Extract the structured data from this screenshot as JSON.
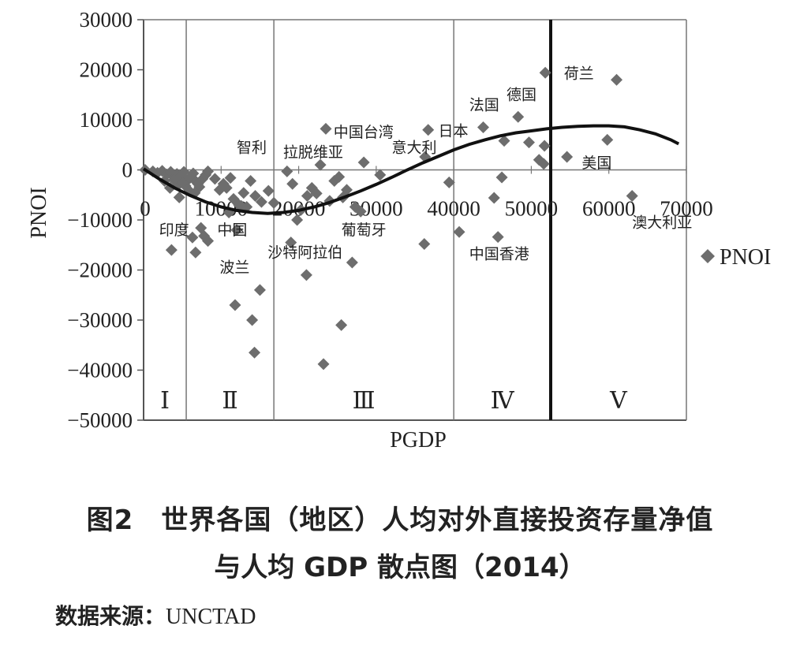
{
  "chart_data": {
    "type": "scatter",
    "title": "",
    "xlabel": "PGDP",
    "ylabel": "PNOI",
    "xlim": [
      0,
      70000
    ],
    "ylim": [
      -50000,
      30000
    ],
    "x_ticks": [
      "0",
      "10000",
      "20000",
      "30000",
      "40000",
      "50000",
      "60000",
      "70000"
    ],
    "y_ticks": [
      "30000",
      "20000",
      "10000",
      "0",
      "−10000",
      "−20000",
      "−30000",
      "−40000",
      "−50000"
    ],
    "legend": "right",
    "grid": false,
    "series": [
      {
        "name": "PNOI",
        "marker": "diamond",
        "color": "#6d6d6d",
        "points": [
          [
            200,
            0
          ],
          [
            1200,
            -300
          ],
          [
            1800,
            -600
          ],
          [
            2400,
            -200
          ],
          [
            3000,
            -900
          ],
          [
            3500,
            -400
          ],
          [
            4000,
            -1600
          ],
          [
            4300,
            -800
          ],
          [
            4800,
            -1200
          ],
          [
            5200,
            -400
          ],
          [
            5600,
            -2200
          ],
          [
            6000,
            -1500
          ],
          [
            6400,
            -700
          ],
          [
            6800,
            -2400
          ],
          [
            7200,
            -3400
          ],
          [
            7600,
            -1800
          ],
          [
            8000,
            -1000
          ],
          [
            8300,
            -300
          ],
          [
            4500,
            -3000
          ],
          [
            5400,
            -3200
          ],
          [
            5900,
            -4200
          ],
          [
            6600,
            -4600
          ],
          [
            7000,
            -2800
          ],
          [
            5000,
            -2600
          ],
          [
            4600,
            -5500
          ],
          [
            3900,
            -2000
          ],
          [
            3400,
            -3600
          ],
          [
            2700,
            -2200
          ],
          [
            3600,
            -16000
          ],
          [
            6300,
            -13500
          ],
          [
            6700,
            -16500
          ],
          [
            7800,
            -13200
          ],
          [
            8300,
            -14200
          ],
          [
            7400,
            -11600
          ],
          [
            9200,
            -1800
          ],
          [
            9800,
            -4000
          ],
          [
            10300,
            -2800
          ],
          [
            10700,
            -3600
          ],
          [
            11200,
            -1600
          ],
          [
            11600,
            -5800
          ],
          [
            12300,
            -7000
          ],
          [
            12900,
            -4600
          ],
          [
            13300,
            -7400
          ],
          [
            13800,
            -2200
          ],
          [
            14400,
            -5200
          ],
          [
            15200,
            -6400
          ],
          [
            16100,
            -4200
          ],
          [
            16800,
            -6600
          ],
          [
            11000,
            -8500
          ],
          [
            12000,
            -12000
          ],
          [
            12600,
            -7200
          ],
          [
            11800,
            -27000
          ],
          [
            14000,
            -30000
          ],
          [
            14300,
            -36500
          ],
          [
            15000,
            -24000
          ],
          [
            18500,
            -300
          ],
          [
            19200,
            -2800
          ],
          [
            19800,
            -10000
          ],
          [
            20300,
            -8000
          ],
          [
            21100,
            -5200
          ],
          [
            21700,
            -3600
          ],
          [
            22300,
            -4700
          ],
          [
            22800,
            1000
          ],
          [
            23500,
            8200
          ],
          [
            24000,
            -6200
          ],
          [
            24600,
            -2200
          ],
          [
            25200,
            -1400
          ],
          [
            25700,
            -5500
          ],
          [
            26200,
            -4000
          ],
          [
            26900,
            -18500
          ],
          [
            27300,
            -7400
          ],
          [
            28000,
            -8300
          ],
          [
            28400,
            1500
          ],
          [
            30500,
            -1000
          ],
          [
            19000,
            -14500
          ],
          [
            21000,
            -21000
          ],
          [
            25500,
            -31000
          ],
          [
            23200,
            -38800
          ],
          [
            36700,
            8000
          ],
          [
            36300,
            2600
          ],
          [
            36200,
            -14800
          ],
          [
            39400,
            -2500
          ],
          [
            40700,
            -12400
          ],
          [
            43800,
            8500
          ],
          [
            45200,
            -5600
          ],
          [
            45700,
            -13400
          ],
          [
            46200,
            -1500
          ],
          [
            46500,
            5800
          ],
          [
            48300,
            10600
          ],
          [
            49700,
            5500
          ],
          [
            51000,
            2000
          ],
          [
            51700,
            4800
          ],
          [
            51600,
            1200
          ],
          [
            51800,
            19400
          ],
          [
            54600,
            2600
          ],
          [
            59800,
            6000
          ],
          [
            61000,
            18000
          ],
          [
            63000,
            -5200
          ]
        ]
      },
      {
        "name": "trend",
        "type": "line",
        "x": [
          0,
          2000,
          4000,
          6000,
          8000,
          10000,
          12000,
          14000,
          16000,
          18000,
          20000,
          22000,
          24000,
          26000,
          28000,
          30000,
          32000,
          34000,
          36000,
          38000,
          40000,
          42000,
          44000,
          46000,
          48000,
          50000,
          52000,
          54000,
          56000,
          58000,
          60000,
          62000,
          64000,
          66000,
          68000,
          69000
        ],
        "y": [
          200,
          -1800,
          -3600,
          -5100,
          -6400,
          -7400,
          -8100,
          -8500,
          -8700,
          -8500,
          -8100,
          -7400,
          -6500,
          -5400,
          -4200,
          -2900,
          -1500,
          0,
          1400,
          2700,
          4000,
          5100,
          6000,
          6800,
          7400,
          7800,
          8200,
          8500,
          8700,
          8800,
          8800,
          8600,
          8000,
          7200,
          6000,
          5200
        ]
      }
    ],
    "annotations": [
      {
        "text": "印度",
        "x": 2000,
        "y": -13000
      },
      {
        "text": "中国",
        "x": 9500,
        "y": -13000
      },
      {
        "text": "波兰",
        "x": 9800,
        "y": -20500
      },
      {
        "text": "智利",
        "x": 12000,
        "y": 3500
      },
      {
        "text": "拉脱维亚",
        "x": 18000,
        "y": 2500
      },
      {
        "text": "沙特阿拉伯",
        "x": 16000,
        "y": -17500
      },
      {
        "text": "葡萄牙",
        "x": 25500,
        "y": -13000
      },
      {
        "text": "中国台湾",
        "x": 24500,
        "y": 6500
      },
      {
        "text": "意大利",
        "x": 32000,
        "y": 3500
      },
      {
        "text": "日本",
        "x": 38000,
        "y": 6800
      },
      {
        "text": "法国",
        "x": 42000,
        "y": 12000
      },
      {
        "text": "德国",
        "x": 46800,
        "y": 14000
      },
      {
        "text": "荷兰",
        "x": 54200,
        "y": 18300
      },
      {
        "text": "美国",
        "x": 56500,
        "y": 400
      },
      {
        "text": "中国香港",
        "x": 42000,
        "y": -17800
      },
      {
        "text": "澳大利亚",
        "x": 63000,
        "y": -11500
      }
    ],
    "regions": [
      {
        "label": "Ⅰ",
        "from": 0,
        "to": 5500
      },
      {
        "label": "Ⅱ",
        "from": 5500,
        "to": 16800
      },
      {
        "label": "Ⅲ",
        "from": 16800,
        "to": 40000
      },
      {
        "label": "Ⅳ",
        "from": 40000,
        "to": 52500
      },
      {
        "label": "Ⅴ",
        "from": 52500,
        "to": 70000
      }
    ]
  },
  "caption": {
    "line1": "图2　世界各国（地区）人均对外直接投资存量净值",
    "line2": "与人均 GDP 散点图（2014）"
  },
  "source": {
    "label": "数据来源：",
    "value": "UNCTAD"
  }
}
